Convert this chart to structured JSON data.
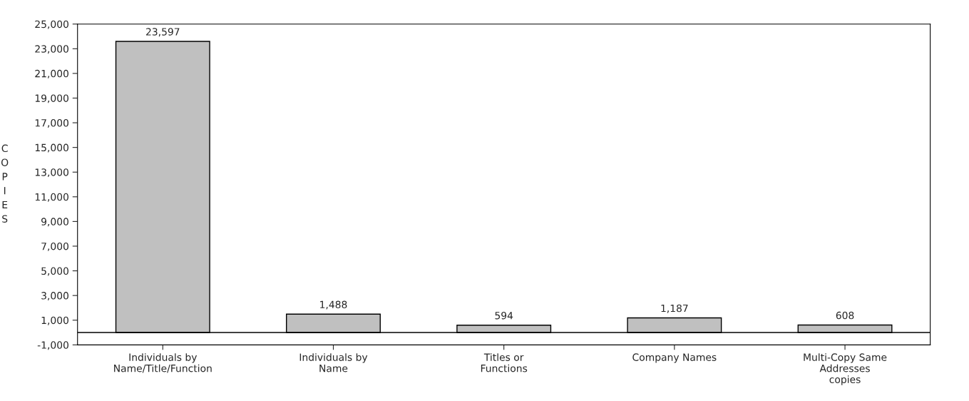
{
  "chart_data": {
    "type": "bar",
    "ylabel": "COPIES",
    "categories": [
      "Individuals by\nName/Title/Function",
      "Individuals by\nName",
      "Titles or\nFunctions",
      "Company Names",
      "Multi-Copy Same\nAddresses\ncopies"
    ],
    "values": [
      23597,
      1488,
      594,
      1187,
      608
    ],
    "value_labels": [
      "23,597",
      "1,488",
      "594",
      "1,187",
      "608"
    ],
    "color": "#c0c0c0",
    "ylim": [
      -1000,
      25000
    ],
    "yticks": [
      {
        "value": -1000,
        "label": "-1,000"
      },
      {
        "value": 1000,
        "label": "1,000"
      },
      {
        "value": 3000,
        "label": "3,000"
      },
      {
        "value": 5000,
        "label": "5,000"
      },
      {
        "value": 7000,
        "label": "7,000"
      },
      {
        "value": 9000,
        "label": "9,000"
      },
      {
        "value": 11000,
        "label": "11,000"
      },
      {
        "value": 13000,
        "label": "13,000"
      },
      {
        "value": 15000,
        "label": "15,000"
      },
      {
        "value": 17000,
        "label": "17,000"
      },
      {
        "value": 19000,
        "label": "19,000"
      },
      {
        "value": 21000,
        "label": "21,000"
      },
      {
        "value": 23000,
        "label": "23,000"
      },
      {
        "value": 25000,
        "label": "25,000"
      }
    ],
    "grid": false,
    "legend": false
  }
}
